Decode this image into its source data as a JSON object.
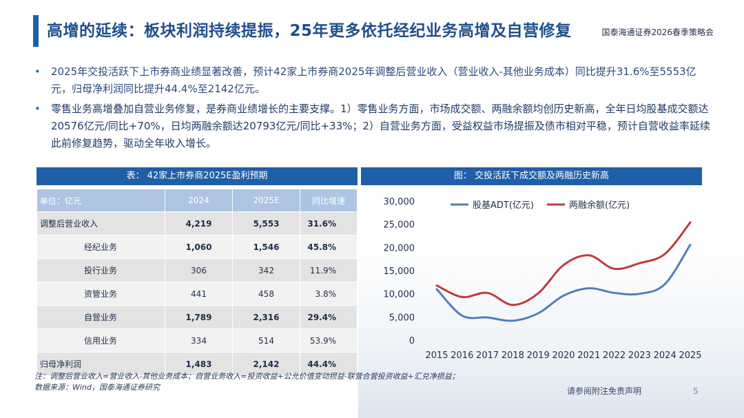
{
  "header": {
    "title": "高增的延续：板块利润持续提振，25年更多依托经纪业务高增及自营修复",
    "brand": "国泰海通证券2026春季策略会"
  },
  "bullets": [
    {
      "symbol": "•",
      "text": "2025年交投活跃下上市券商业绩显著改善，预计42家上市券商2025年调整后营业收入（营业收入-其他业务成本）同比提升31.6%至5553亿元，归母净利润同比提升44.4%至2142亿元。"
    },
    {
      "symbol": "•",
      "text": "零售业务高增叠加自营业务修复，是券商业绩增长的主要支撑。1）零售业务方面，市场成交额、两融余额均创历史新高，全年日均股基成交额达20576亿元/同比+70%，日均两融余额达20793亿元/同比+33%；2）自营业务方面，受益权益市场提振及债市相对平稳，预计自营收益率延续此前修复趋势，驱动全年收入增长。"
    }
  ],
  "table": {
    "title": "表： 42家上市券商2025E盈利预期",
    "columns": [
      "单位：亿元",
      "2024",
      "2025E",
      "同比增速"
    ],
    "rows": [
      {
        "label": "调整后营业收入",
        "v2024": "4,219",
        "v2025": "5,553",
        "yoy": "31.6%",
        "bold": true,
        "indent": false
      },
      {
        "label": "经纪业务",
        "v2024": "1,060",
        "v2025": "1,546",
        "yoy": "45.8%",
        "bold": true,
        "indent": true
      },
      {
        "label": "投行业务",
        "v2024": "306",
        "v2025": "342",
        "yoy": "11.9%",
        "bold": false,
        "indent": true
      },
      {
        "label": "资管业务",
        "v2024": "441",
        "v2025": "458",
        "yoy": "3.8%",
        "bold": false,
        "indent": true
      },
      {
        "label": "自营业务",
        "v2024": "1,789",
        "v2025": "2,316",
        "yoy": "29.4%",
        "bold": true,
        "indent": true
      },
      {
        "label": "信用业务",
        "v2024": "334",
        "v2025": "514",
        "yoy": "53.9%",
        "bold": false,
        "indent": true
      },
      {
        "label": "归母净利润",
        "v2024": "1,483",
        "v2025": "2,142",
        "yoy": "44.4%",
        "bold": true,
        "indent": false
      }
    ]
  },
  "note": {
    "line1": "注：调整后营业收入=营业收入-其他业务成本；自营业务收入=投资收益+公允价值变动损益-联营合营投资收益+汇兑净损益；",
    "line2": "数据来源：Wind，国泰海通证券研究"
  },
  "chart_title": "图： 交投活跃下成交额及两融历史新高",
  "chart_data": {
    "type": "line",
    "title": "交投活跃下成交额及两融历史新高",
    "x": [
      "2015",
      "2016",
      "2017",
      "2018",
      "2019",
      "2020",
      "2021",
      "2022",
      "2023",
      "2024",
      "2025"
    ],
    "series": [
      {
        "name": "股基ADT(亿元)",
        "color": "#4f7fb8",
        "values": [
          11000,
          5300,
          4900,
          4200,
          5800,
          9600,
          11200,
          10200,
          10000,
          12100,
          20576
        ]
      },
      {
        "name": "两融余额(亿元)",
        "color": "#c0393b",
        "values": [
          11800,
          9300,
          10200,
          7600,
          10100,
          16200,
          18300,
          15400,
          16600,
          18600,
          25400
        ]
      }
    ],
    "ylim": [
      0,
      30000
    ],
    "yticks": [
      "0",
      "5,000",
      "10,000",
      "15,000",
      "20,000",
      "25,000",
      "30,000"
    ],
    "ytick_values": [
      0,
      5000,
      10000,
      15000,
      20000,
      25000,
      30000
    ],
    "legend": "top-left",
    "grid": false
  },
  "footer": {
    "disclaimer": "请参阅附注免责声明",
    "page": "5"
  }
}
